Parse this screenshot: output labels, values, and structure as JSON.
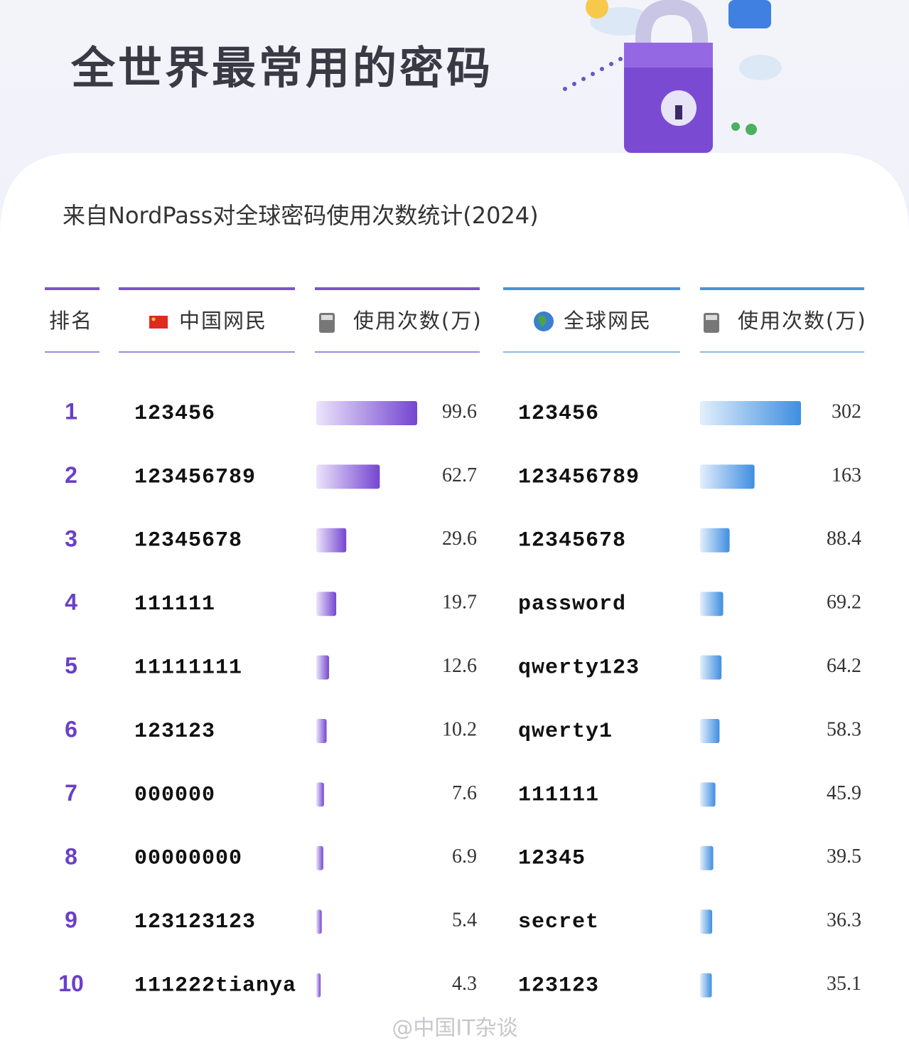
{
  "title": "全世界最常用的密码",
  "subtitle": "来自NordPass对全球密码使用次数统计(2024)",
  "table": {
    "columns": [
      "排名",
      "中国网民",
      "使用次数(万)",
      "全球网民",
      "使用次数(万)"
    ],
    "rows": [
      [
        1,
        "123456",
        99.6,
        "123456",
        302
      ],
      [
        2,
        "123456789",
        62.7,
        "123456789",
        163
      ],
      [
        3,
        "12345678",
        29.6,
        "12345678",
        88.4
      ],
      [
        4,
        "111111",
        19.7,
        "password",
        69.2
      ],
      [
        5,
        "11111111",
        12.6,
        "qwerty123",
        64.2
      ],
      [
        6,
        "123123",
        10.2,
        "qwerty1",
        58.3
      ],
      [
        7,
        "000000",
        7.6,
        "111111",
        45.9
      ],
      [
        8,
        "00000000",
        6.9,
        "12345",
        39.5
      ],
      [
        9,
        "123123123",
        5.4,
        "secret",
        36.3
      ],
      [
        10,
        "111222tianya",
        4.3,
        "123123",
        35.1
      ]
    ]
  },
  "watermark": "@中国IT杂谈"
}
